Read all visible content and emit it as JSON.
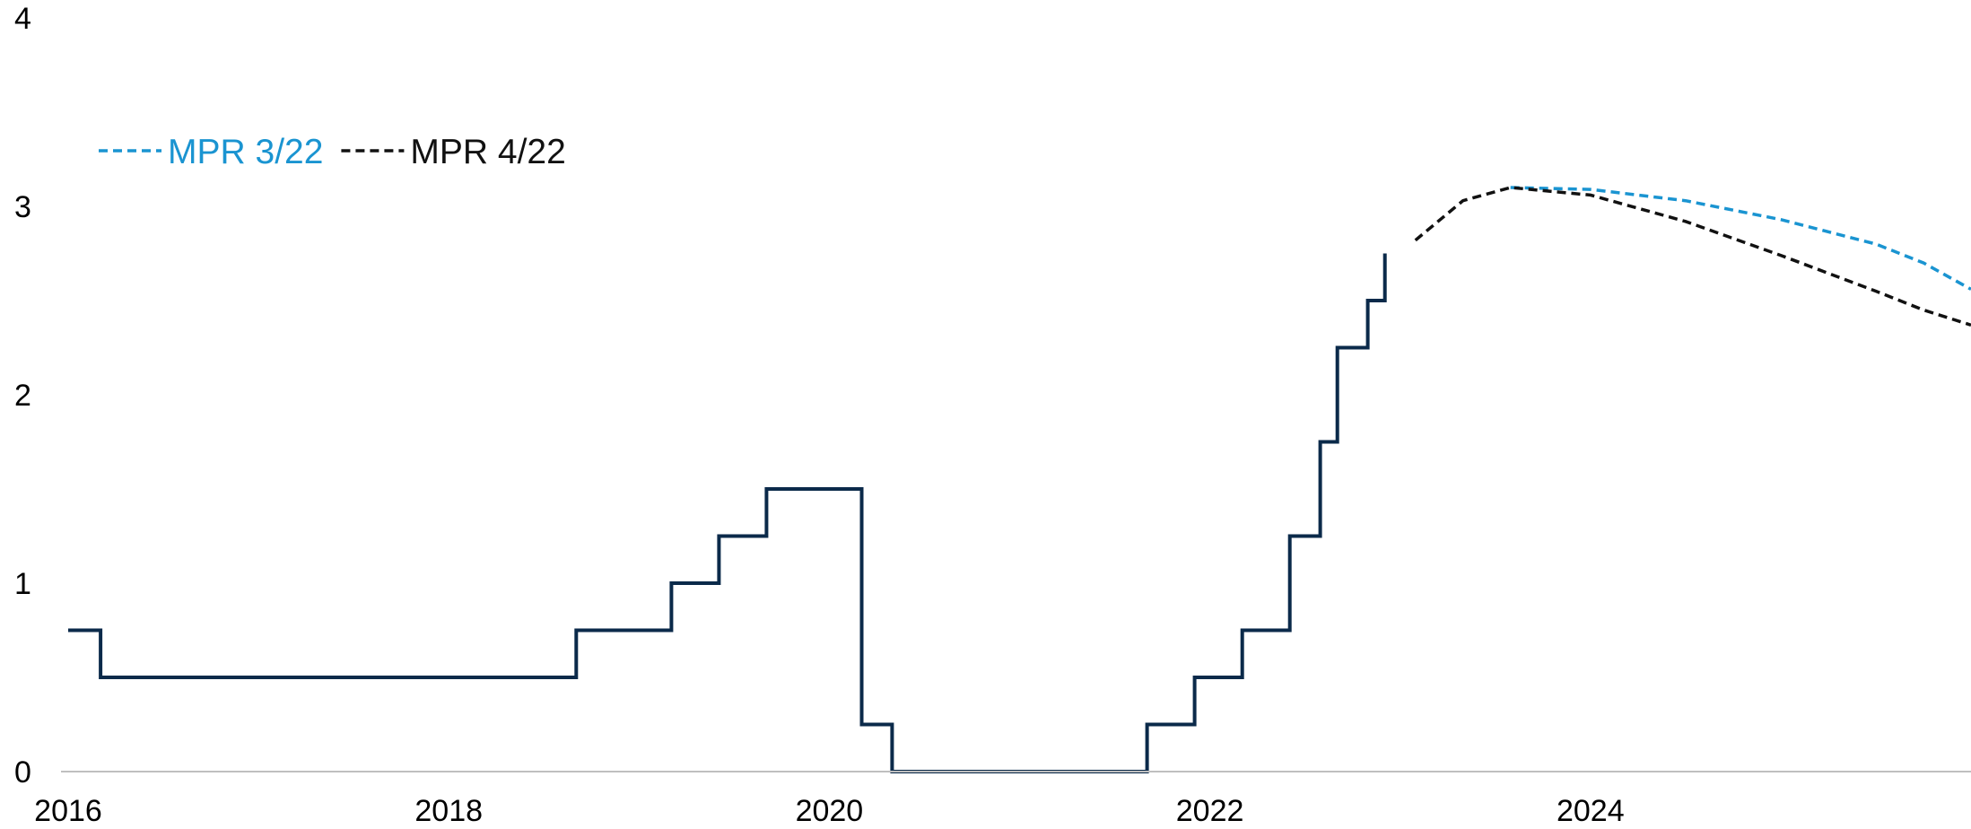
{
  "chart_data": {
    "type": "line",
    "title": "",
    "xlabel": "",
    "ylabel": "",
    "xlim": [
      2016.0,
      2026.0
    ],
    "ylim": [
      0,
      4
    ],
    "x_ticks": [
      {
        "value": 2016,
        "label": "2016"
      },
      {
        "value": 2018,
        "label": "2018"
      },
      {
        "value": 2020,
        "label": "2020"
      },
      {
        "value": 2022,
        "label": "2022"
      },
      {
        "value": 2024,
        "label": "2024"
      }
    ],
    "y_ticks": [
      {
        "value": 0,
        "label": "0"
      },
      {
        "value": 1,
        "label": "1"
      },
      {
        "value": 2,
        "label": "2"
      },
      {
        "value": 3,
        "label": "3"
      },
      {
        "value": 4,
        "label": "4"
      }
    ],
    "grid": false,
    "legend_position": "top-left",
    "series": [
      {
        "color": "#0b2a4a",
        "style": "step",
        "points": [
          [
            2016.0,
            0.75
          ],
          [
            2016.17,
            0.75
          ],
          [
            2016.17,
            0.5
          ],
          [
            2018.67,
            0.5
          ],
          [
            2018.67,
            0.75
          ],
          [
            2019.17,
            0.75
          ],
          [
            2019.17,
            1.0
          ],
          [
            2019.42,
            1.0
          ],
          [
            2019.42,
            1.25
          ],
          [
            2019.67,
            1.25
          ],
          [
            2019.67,
            1.5
          ],
          [
            2020.17,
            1.5
          ],
          [
            2020.17,
            0.25
          ],
          [
            2020.33,
            0.25
          ],
          [
            2020.33,
            0.0
          ],
          [
            2021.67,
            0.0
          ],
          [
            2021.67,
            0.25
          ],
          [
            2021.92,
            0.25
          ],
          [
            2021.92,
            0.5
          ],
          [
            2022.17,
            0.5
          ],
          [
            2022.17,
            0.75
          ],
          [
            2022.42,
            0.75
          ],
          [
            2022.42,
            1.25
          ],
          [
            2022.58,
            1.25
          ],
          [
            2022.58,
            1.75
          ],
          [
            2022.67,
            1.75
          ],
          [
            2022.67,
            2.25
          ],
          [
            2022.83,
            2.25
          ],
          [
            2022.83,
            2.5
          ],
          [
            2022.92,
            2.5
          ],
          [
            2022.92,
            2.75
          ]
        ]
      },
      {
        "name": "MPR 3/22",
        "color": "#1a94d1",
        "style": "dashed",
        "points": [
          [
            2023.58,
            3.1
          ],
          [
            2024.0,
            3.09
          ],
          [
            2024.5,
            3.03
          ],
          [
            2025.0,
            2.93
          ],
          [
            2025.5,
            2.8
          ],
          [
            2025.75,
            2.7
          ],
          [
            2026.0,
            2.56
          ]
        ]
      },
      {
        "name": "MPR 4/22",
        "color": "#111111",
        "style": "dashed",
        "points": [
          [
            2023.08,
            2.82
          ],
          [
            2023.33,
            3.03
          ],
          [
            2023.58,
            3.1
          ],
          [
            2024.0,
            3.06
          ],
          [
            2024.5,
            2.92
          ],
          [
            2025.0,
            2.74
          ],
          [
            2025.5,
            2.55
          ],
          [
            2025.75,
            2.45
          ],
          [
            2026.0,
            2.37
          ]
        ]
      }
    ]
  }
}
